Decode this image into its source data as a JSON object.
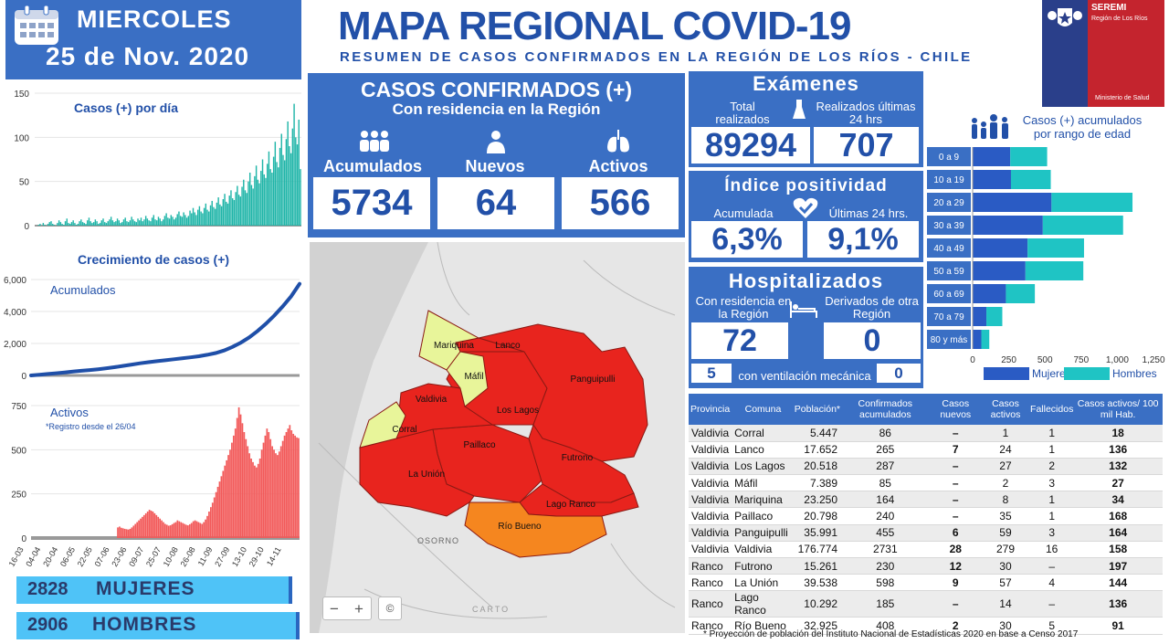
{
  "header": {
    "weekday": "MIERCOLES",
    "date": "25 de Nov. 2020",
    "title": "MAPA REGIONAL COVID-19",
    "subtitle": "RESUMEN DE CASOS CONFIRMADOS EN LA REGIÓN DE LOS RÍOS - CHILE"
  },
  "seremi": {
    "name": "SEREMI",
    "region": "Región de Los Ríos",
    "ministry": "Ministerio de Salud"
  },
  "confirmed": {
    "title": "CASOS CONFIRMADOS (+)",
    "subtitle": "Con residencia en la Región",
    "acum_label": "Acumulados",
    "acum": "5734",
    "new_label": "Nuevos",
    "new": "64",
    "active_label": "Activos",
    "active": "566"
  },
  "exams": {
    "title": "Exámenes",
    "total_label": "Total realizados",
    "total": "89294",
    "last24_label": "Realizados últimas 24 hrs",
    "last24": "707"
  },
  "positivity": {
    "title": "Índice positividad",
    "acum_label": "Acumulada",
    "acum": "6,3%",
    "last_label": "Últimas 24 hrs.",
    "last": "9,1%"
  },
  "hospital": {
    "title": "Hospitalizados",
    "res_label": "Con residencia en la Región",
    "res": "72",
    "der_label": "Derivados de otra Región",
    "der": "0",
    "vent_left": "5",
    "vent_label": "con ventilación mecánica",
    "vent_right": "0"
  },
  "gender": {
    "women_count": "2828",
    "women_label": "MUJERES",
    "men_count": "2906",
    "men_label": "HOMBRES"
  },
  "map": {
    "osorno": "OSORNO",
    "carto": "CARTO",
    "zoom_out": "−",
    "zoom_in": "+",
    "attrib": "©",
    "communes": [
      {
        "name": "Mariquina",
        "color": "#e8f59a"
      },
      {
        "name": "Lanco",
        "color": "#e8241e"
      },
      {
        "name": "Máfil",
        "color": "#e8f59a"
      },
      {
        "name": "Panguipulli",
        "color": "#e8241e"
      },
      {
        "name": "Valdivia",
        "color": "#e8241e"
      },
      {
        "name": "Los Lagos",
        "color": "#e8241e"
      },
      {
        "name": "Corral",
        "color": "#e8f59a"
      },
      {
        "name": "Paillaco",
        "color": "#e8241e"
      },
      {
        "name": "Futrono",
        "color": "#e8241e"
      },
      {
        "name": "La Unión",
        "color": "#e8241e"
      },
      {
        "name": "Lago Ranco",
        "color": "#e8241e"
      },
      {
        "name": "Río Bueno",
        "color": "#f5861f"
      }
    ]
  },
  "table": {
    "headers": [
      "Provincia",
      "Comuna",
      "Población*",
      "Confirmados acumulados",
      "Casos nuevos",
      "Casos activos",
      "Fallecidos",
      "Casos activos/ 100 mil Hab."
    ],
    "rows": [
      [
        "Valdivia",
        "Corral",
        "5.447",
        "86",
        "–",
        "1",
        "1",
        "18"
      ],
      [
        "Valdivia",
        "Lanco",
        "17.652",
        "265",
        "7",
        "24",
        "1",
        "136"
      ],
      [
        "Valdivia",
        "Los Lagos",
        "20.518",
        "287",
        "–",
        "27",
        "2",
        "132"
      ],
      [
        "Valdivia",
        "Máfil",
        "7.389",
        "85",
        "–",
        "2",
        "3",
        "27"
      ],
      [
        "Valdivia",
        "Mariquina",
        "23.250",
        "164",
        "–",
        "8",
        "1",
        "34"
      ],
      [
        "Valdivia",
        "Paillaco",
        "20.798",
        "240",
        "–",
        "35",
        "1",
        "168"
      ],
      [
        "Valdivia",
        "Panguipulli",
        "35.991",
        "455",
        "6",
        "59",
        "3",
        "164"
      ],
      [
        "Valdivia",
        "Valdivia",
        "176.774",
        "2731",
        "28",
        "279",
        "16",
        "158"
      ],
      [
        "Ranco",
        "Futrono",
        "15.261",
        "230",
        "12",
        "30",
        "–",
        "197"
      ],
      [
        "Ranco",
        "La Unión",
        "39.538",
        "598",
        "9",
        "57",
        "4",
        "144"
      ],
      [
        "Ranco",
        "Lago Ranco",
        "10.292",
        "185",
        "–",
        "14",
        "–",
        "136"
      ],
      [
        "Ranco",
        "Río  Bueno",
        "32.925",
        "408",
        "2",
        "30",
        "5",
        "91"
      ]
    ],
    "footnote": "*  Proyección de población del Instituto Nacional de Estadísticas 2020 en base a Censo 2017"
  },
  "chart_data": [
    {
      "type": "bar",
      "title": "Casos (+) por día",
      "ylim": [
        0,
        150
      ],
      "yticks": [
        0,
        50,
        100,
        150
      ],
      "values": [
        0,
        0,
        1,
        2,
        0,
        3,
        1,
        0,
        2,
        4,
        5,
        2,
        1,
        0,
        3,
        6,
        4,
        2,
        1,
        5,
        8,
        3,
        2,
        4,
        6,
        3,
        1,
        2,
        5,
        7,
        4,
        3,
        2,
        6,
        9,
        5,
        3,
        4,
        7,
        5,
        2,
        3,
        6,
        8,
        4,
        3,
        5,
        7,
        10,
        6,
        4,
        5,
        8,
        6,
        3,
        4,
        7,
        9,
        5,
        4,
        6,
        10,
        7,
        5,
        4,
        8,
        6,
        9,
        5,
        7,
        11,
        8,
        6,
        5,
        9,
        12,
        7,
        6,
        10,
        8,
        5,
        7,
        11,
        14,
        9,
        8,
        12,
        10,
        7,
        9,
        13,
        16,
        11,
        10,
        15,
        12,
        9,
        11,
        17,
        14,
        20,
        15,
        12,
        18,
        22,
        16,
        14,
        20,
        25,
        18,
        16,
        23,
        28,
        21,
        19,
        26,
        32,
        24,
        22,
        30,
        36,
        27,
        25,
        34,
        40,
        31,
        29,
        38,
        45,
        35,
        33,
        44,
        52,
        40,
        37,
        50,
        60,
        46,
        42,
        56,
        68,
        52,
        48,
        62,
        75,
        58,
        54,
        70,
        84,
        64,
        60,
        78,
        95,
        72,
        66,
        88,
        104,
        80,
        74,
        98,
        118,
        90,
        82,
        110,
        138,
        100,
        92,
        120,
        64
      ]
    },
    {
      "type": "line",
      "title": "Crecimiento de casos (+)",
      "series": [
        {
          "name": "Acumulados",
          "values": [
            0,
            40,
            90,
            140,
            190,
            240,
            290,
            340,
            390,
            450,
            520,
            600,
            680,
            760,
            830,
            890,
            950,
            1010,
            1070,
            1130,
            1200,
            1290,
            1400,
            1560,
            1780,
            2050,
            2380,
            2780,
            3240,
            3750,
            4320,
            4950,
            5734
          ]
        }
      ],
      "ylim": [
        0,
        6000
      ],
      "yticks": [
        "0",
        "2,000",
        "4,000",
        "6,000"
      ]
    },
    {
      "type": "bar",
      "title": "Activos",
      "note": "*Registro desde el 26/04",
      "ylim": [
        0,
        750
      ],
      "yticks": [
        0,
        250,
        500,
        750
      ],
      "xticks": [
        "16-03",
        "04-04",
        "20-04",
        "06-05",
        "22-05",
        "07-06",
        "23-06",
        "09-07",
        "25-07",
        "10-08",
        "26-08",
        "11-09",
        "27-09",
        "13-10",
        "29-10",
        "14-11"
      ],
      "values": [
        0,
        0,
        0,
        0,
        0,
        0,
        0,
        0,
        0,
        0,
        0,
        0,
        0,
        0,
        0,
        0,
        0,
        0,
        0,
        0,
        0,
        0,
        0,
        0,
        0,
        0,
        0,
        0,
        0,
        0,
        0,
        0,
        0,
        0,
        0,
        0,
        0,
        0,
        0,
        0,
        0,
        0,
        0,
        0,
        0,
        0,
        0,
        0,
        0,
        60,
        65,
        58,
        55,
        52,
        50,
        48,
        52,
        60,
        70,
        80,
        90,
        100,
        110,
        120,
        130,
        140,
        150,
        160,
        155,
        150,
        140,
        130,
        120,
        110,
        100,
        90,
        80,
        75,
        70,
        72,
        78,
        85,
        90,
        100,
        95,
        90,
        85,
        80,
        75,
        72,
        78,
        85,
        95,
        100,
        95,
        90,
        85,
        80,
        90,
        105,
        125,
        150,
        175,
        200,
        230,
        260,
        290,
        320,
        350,
        380,
        410,
        440,
        470,
        500,
        540,
        580,
        620,
        680,
        740,
        700,
        650,
        600,
        560,
        520,
        480,
        450,
        430,
        410,
        400,
        420,
        450,
        500,
        540,
        580,
        620,
        600,
        560,
        520,
        500,
        480,
        470,
        490,
        520,
        550,
        580,
        600,
        620,
        640,
        610,
        590,
        580,
        570,
        566
      ]
    },
    {
      "type": "bar",
      "title": "Casos (+) acumulados por rango de edad",
      "categories": [
        "0 a 9",
        "10 a 19",
        "20 a 29",
        "30 a 39",
        "40 a 49",
        "50 a 59",
        "60 a 69",
        "70 a 79",
        "80 y más"
      ],
      "series": [
        {
          "name": "Mujeres",
          "values": [
            260,
            265,
            545,
            485,
            380,
            365,
            230,
            95,
            60
          ]
        },
        {
          "name": "Hombres",
          "values": [
            255,
            275,
            560,
            555,
            390,
            400,
            200,
            110,
            55
          ]
        }
      ],
      "xticks": [
        "0",
        "250",
        "500",
        "750",
        "1,000",
        "1,250"
      ],
      "xlim": [
        0,
        1250
      ]
    }
  ]
}
